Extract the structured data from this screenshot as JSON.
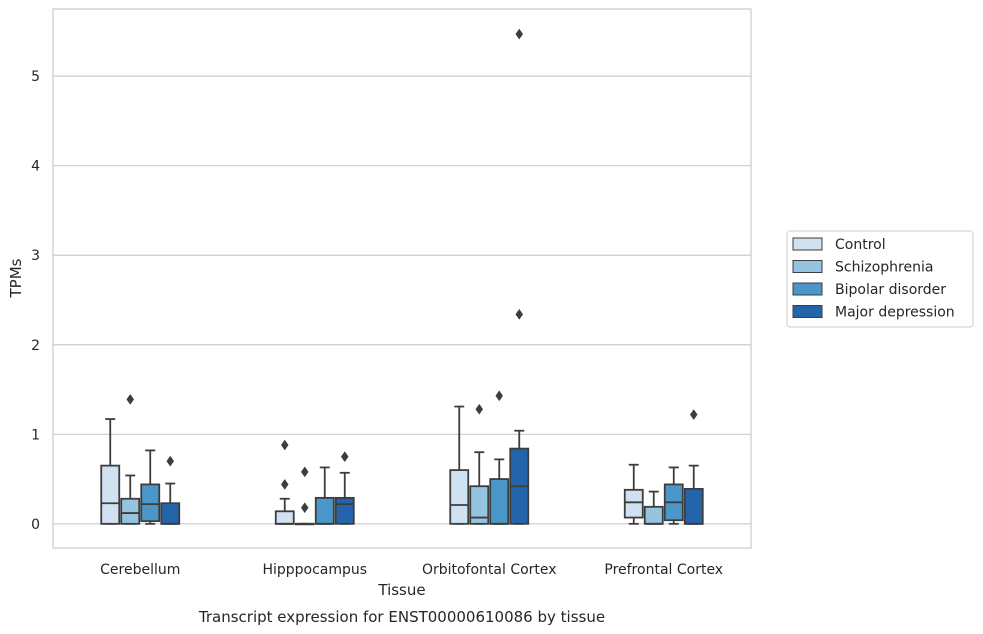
{
  "chart_data": {
    "type": "box",
    "xlabel": "Tissue",
    "ylabel": "TPMs",
    "caption": "Transcript expression for ENST00000610086 by tissue",
    "ylim": [
      -0.27,
      5.75
    ],
    "yticks": [
      0,
      1,
      2,
      3,
      4,
      5
    ],
    "grid": "horizontal",
    "legend_position": "right",
    "categories": [
      "Cerebellum",
      "Hipppocampus",
      "Orbitofontal Cortex",
      "Prefrontal Cortex"
    ],
    "series": [
      {
        "name": "Control",
        "color": "#d0e1f2",
        "boxes": [
          {
            "whisker_low": 0,
            "q1": 0,
            "median": 0.23,
            "q3": 0.65,
            "whisker_high": 1.17,
            "outliers": []
          },
          {
            "whisker_low": 0,
            "q1": 0,
            "median": 0.0,
            "q3": 0.14,
            "whisker_high": 0.28,
            "outliers": [
              0.44,
              0.88
            ]
          },
          {
            "whisker_low": 0,
            "q1": 0,
            "median": 0.21,
            "q3": 0.6,
            "whisker_high": 1.31,
            "outliers": []
          },
          {
            "whisker_low": 0,
            "q1": 0.07,
            "median": 0.24,
            "q3": 0.38,
            "whisker_high": 0.66,
            "outliers": []
          }
        ]
      },
      {
        "name": "Schizophrenia",
        "color": "#94c4df",
        "boxes": [
          {
            "whisker_low": 0,
            "q1": 0,
            "median": 0.12,
            "q3": 0.28,
            "whisker_high": 0.54,
            "outliers": [
              1.39
            ]
          },
          {
            "whisker_low": 0,
            "q1": 0,
            "median": 0,
            "q3": 0,
            "whisker_high": 0,
            "outliers": [
              0.18,
              0.58
            ]
          },
          {
            "whisker_low": 0,
            "q1": 0,
            "median": 0.07,
            "q3": 0.42,
            "whisker_high": 0.8,
            "outliers": [
              1.28
            ]
          },
          {
            "whisker_low": 0,
            "q1": 0,
            "median": 0.0,
            "q3": 0.19,
            "whisker_high": 0.36,
            "outliers": []
          }
        ]
      },
      {
        "name": "Bipolar disorder",
        "color": "#4a98c9",
        "boxes": [
          {
            "whisker_low": 0,
            "q1": 0.03,
            "median": 0.22,
            "q3": 0.44,
            "whisker_high": 0.82,
            "outliers": []
          },
          {
            "whisker_low": 0,
            "q1": 0,
            "median": 0.0,
            "q3": 0.29,
            "whisker_high": 0.63,
            "outliers": []
          },
          {
            "whisker_low": 0,
            "q1": 0,
            "median": 0.0,
            "q3": 0.5,
            "whisker_high": 0.72,
            "outliers": [
              1.43
            ]
          },
          {
            "whisker_low": 0,
            "q1": 0.04,
            "median": 0.24,
            "q3": 0.44,
            "whisker_high": 0.63,
            "outliers": []
          }
        ]
      },
      {
        "name": "Major depression",
        "color": "#2464ab",
        "boxes": [
          {
            "whisker_low": 0,
            "q1": 0,
            "median": 0.0,
            "q3": 0.23,
            "whisker_high": 0.45,
            "outliers": [
              0.7
            ]
          },
          {
            "whisker_low": 0,
            "q1": 0,
            "median": 0.22,
            "q3": 0.29,
            "whisker_high": 0.57,
            "outliers": [
              0.75
            ]
          },
          {
            "whisker_low": 0,
            "q1": 0,
            "median": 0.42,
            "q3": 0.84,
            "whisker_high": 1.04,
            "outliers": [
              2.34,
              5.47
            ]
          },
          {
            "whisker_low": 0,
            "q1": 0,
            "median": 0.0,
            "q3": 0.39,
            "whisker_high": 0.65,
            "outliers": [
              1.22
            ]
          }
        ]
      }
    ]
  }
}
